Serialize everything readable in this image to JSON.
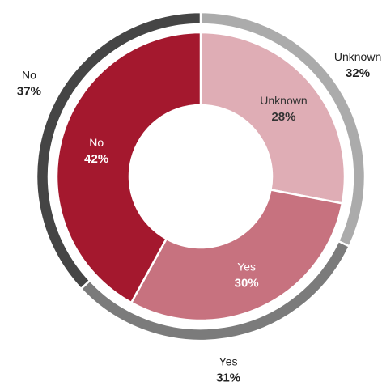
{
  "chart_data": {
    "type": "pie",
    "series": [
      {
        "ring": "outer",
        "slices": [
          {
            "label": "Unknown",
            "value": 32,
            "display": "32%",
            "color": "#ababab"
          },
          {
            "label": "Yes",
            "value": 31,
            "display": "31%",
            "color": "#7b7b7b"
          },
          {
            "label": "No",
            "value": 37,
            "display": "37%",
            "color": "#454545"
          }
        ]
      },
      {
        "ring": "inner",
        "slices": [
          {
            "label": "Unknown",
            "value": 28,
            "display": "28%",
            "color": "#dfadb5"
          },
          {
            "label": "Yes",
            "value": 30,
            "display": "30%",
            "color": "#c7727f"
          },
          {
            "label": "No",
            "value": 42,
            "display": "42%",
            "color": "#a4182e"
          }
        ]
      }
    ],
    "legend": "none"
  }
}
